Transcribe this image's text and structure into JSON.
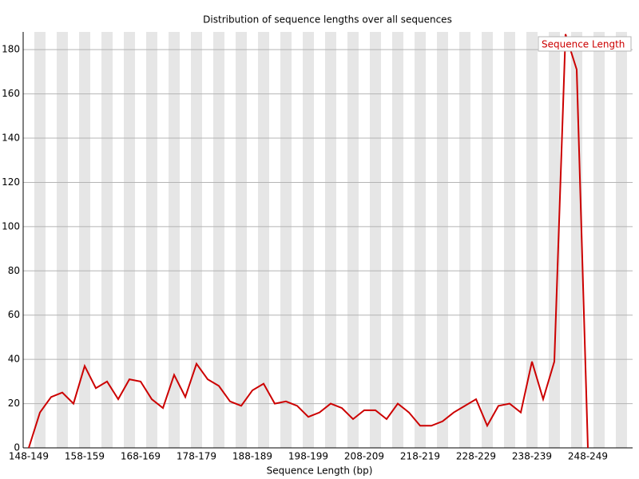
{
  "chart_data": {
    "type": "line",
    "title": "Distribution of sequence lengths over all sequences",
    "xlabel": "Sequence Length (bp)",
    "categories": [
      "148-149",
      null,
      null,
      null,
      null,
      "158-159",
      null,
      null,
      null,
      null,
      "168-169",
      null,
      null,
      null,
      null,
      "178-179",
      null,
      null,
      null,
      null,
      "188-189",
      null,
      null,
      null,
      null,
      "198-199",
      null,
      null,
      null,
      null,
      "208-209",
      null,
      null,
      null,
      null,
      "218-219",
      null,
      null,
      null,
      null,
      "228-229",
      null,
      null,
      null,
      null,
      "238-239",
      null,
      null,
      null,
      null,
      "248-249",
      null,
      null,
      null
    ],
    "series": [
      {
        "name": "Sequence Length",
        "color": "#cc0000",
        "values": [
          0,
          16,
          23,
          25,
          20,
          37,
          27,
          30,
          22,
          31,
          30,
          22,
          18,
          33,
          23,
          38,
          31,
          28,
          21,
          19,
          26,
          29,
          20,
          21,
          19,
          14,
          16,
          20,
          18,
          13,
          17,
          17,
          13,
          20,
          16,
          10,
          10,
          12,
          16,
          19,
          22,
          10,
          19,
          20,
          16,
          39,
          22,
          39,
          187,
          171,
          0,
          null,
          null,
          null
        ]
      }
    ],
    "ylim": [
      0,
      188
    ],
    "yticks": [
      0,
      20,
      40,
      60,
      80,
      100,
      120,
      140,
      160,
      180
    ],
    "grid": true,
    "legend": "top-right",
    "stripes": "#e6e6e6"
  }
}
